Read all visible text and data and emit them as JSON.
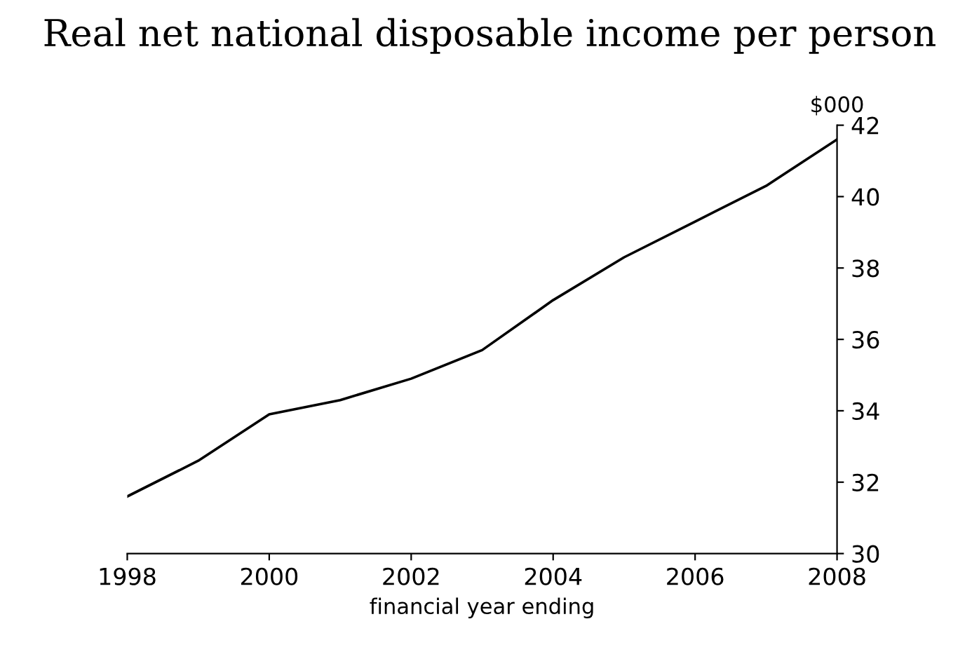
{
  "chart_data": {
    "type": "line",
    "title": "Real net national disposable income per person",
    "xlabel": "financial year ending",
    "ylabel": "$000",
    "x": [
      1998,
      1999,
      2000,
      2001,
      2002,
      2003,
      2004,
      2005,
      2006,
      2007,
      2008
    ],
    "series": [
      {
        "color": "#000000",
        "values": [
          31.6,
          32.6,
          33.9,
          34.3,
          34.9,
          35.7,
          37.1,
          38.3,
          39.3,
          40.3,
          41.6
        ]
      }
    ],
    "xlim": [
      1998,
      2008
    ],
    "xticks": [
      1998,
      2000,
      2002,
      2004,
      2006,
      2008
    ],
    "ylim": [
      30,
      42
    ],
    "yticks": [
      30,
      32,
      34,
      36,
      38,
      40,
      42
    ],
    "grid": false,
    "legend": false,
    "marker": "none",
    "line_style": "solid"
  }
}
